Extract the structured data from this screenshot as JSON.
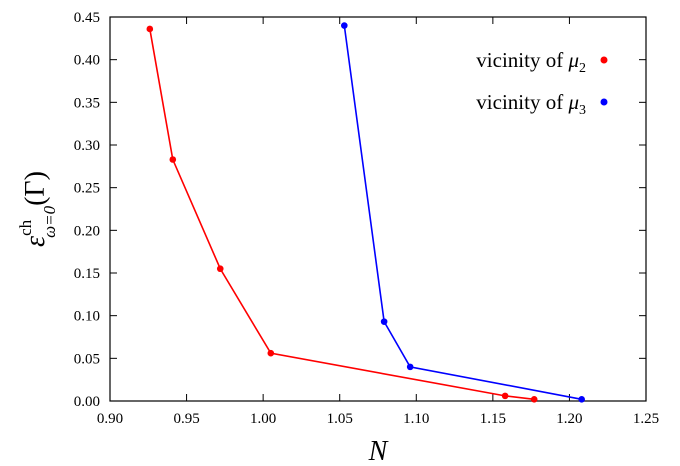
{
  "chart_data": {
    "type": "line",
    "xlabel": "N",
    "ylabel": {
      "base": "ε",
      "sup": "ch",
      "sub": "ω=0",
      "arg": "(Γ)"
    },
    "xlim": [
      0.9,
      1.25
    ],
    "ylim": [
      0.0,
      0.45
    ],
    "xticks": [
      "0.90",
      "0.95",
      "1.00",
      "1.05",
      "1.10",
      "1.15",
      "1.20",
      "1.25"
    ],
    "yticks": [
      "0.00",
      "0.05",
      "0.10",
      "0.15",
      "0.20",
      "0.25",
      "0.30",
      "0.35",
      "0.40",
      "0.45"
    ],
    "grid": false,
    "legend_position": "top-right",
    "series": [
      {
        "name": "vicinity of μ₂",
        "legend_prefix": "vicinity of ",
        "legend_symbol": "μ",
        "legend_sub": "2",
        "color": "#ff0000",
        "x": [
          0.926,
          0.941,
          0.972,
          1.005,
          1.158,
          1.177
        ],
        "y": [
          0.436,
          0.283,
          0.155,
          0.056,
          0.006,
          0.002
        ]
      },
      {
        "name": "vicinity of μ₃",
        "legend_prefix": "vicinity of ",
        "legend_symbol": "μ",
        "legend_sub": "3",
        "color": "#0000ff",
        "x": [
          1.053,
          1.079,
          1.096,
          1.208
        ],
        "y": [
          0.44,
          0.093,
          0.04,
          0.002
        ]
      }
    ]
  }
}
